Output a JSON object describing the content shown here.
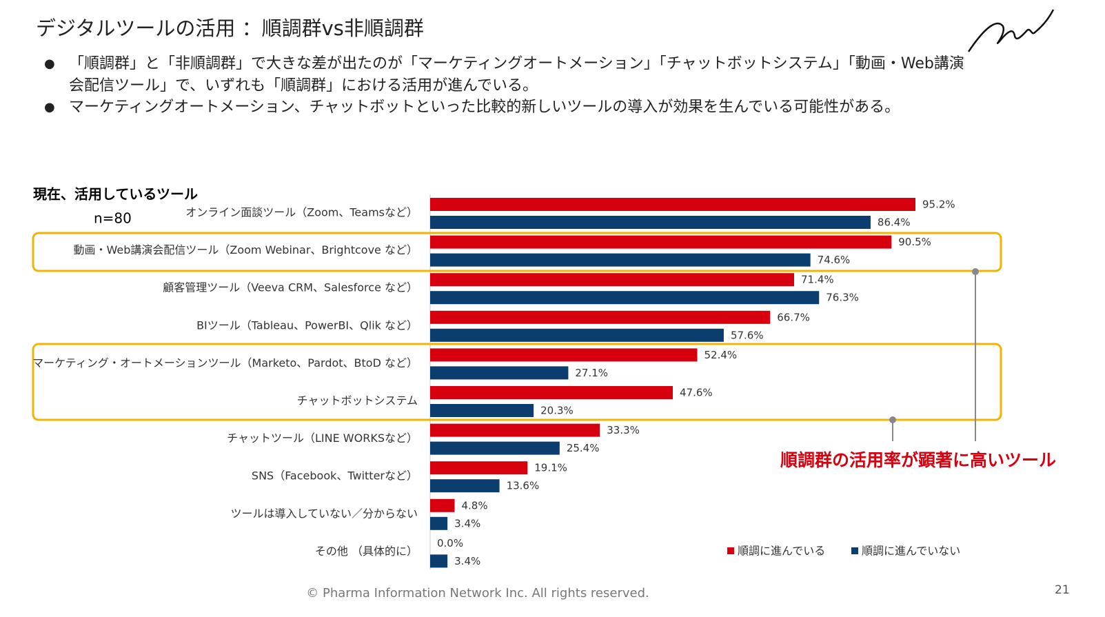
{
  "header": {
    "title": "デジタルツールの活用 ：順調群vs非順調群",
    "bullets": [
      "「順調群」と「非順調群」で大きな差が出たのが「マーケティングオートメーション」「チャットボットシステム」「動画・Web講演会配信ツール」で、いずれも「順調群」における活用が進んでいる。",
      "マーケティングオートメーション、チャットボットといった比較的新しいツールの導入が効果を生んでいる可能性がある。"
    ]
  },
  "chart_data": {
    "type": "bar",
    "orientation": "horizontal",
    "title": "現在、活用しているツール",
    "subtitle": "n=80",
    "categories": [
      "オンライン面談ツール（Zoom、Teamsなど）",
      "動画・Web講演会配信ツール（Zoom Webinar、Brightcove など）",
      "顧客管理ツール（Veeva CRM、Salesforce など）",
      "BIツール（Tableau、PowerBI、Qlik など）",
      "マーケティング・オートメーションツール（Marketo、Pardot、BtoD など）",
      "チャットボットシステム",
      "チャットツール（LINE WORKSなど）",
      "SNS（Facebook、Twitterなど）",
      "ツールは導入していない／分からない",
      "その他 （具体的に）"
    ],
    "series": [
      {
        "name": "順調に進んでいる",
        "color": "#d7000f",
        "values": [
          95.2,
          90.5,
          71.4,
          66.7,
          52.4,
          47.6,
          33.3,
          19.1,
          4.8,
          0.0
        ],
        "value_labels": [
          "95.2%",
          "90.5%",
          "71.4%",
          "66.7%",
          "52.4%",
          "47.6%",
          "33.3%",
          "19.1%",
          "4.8%",
          "0.0%"
        ]
      },
      {
        "name": "順調に進んでいない",
        "color": "#0b3d6e",
        "values": [
          86.4,
          74.6,
          76.3,
          57.6,
          27.1,
          20.3,
          25.4,
          13.6,
          3.4,
          3.4
        ],
        "value_labels": [
          "86.4%",
          "74.6%",
          "76.3%",
          "57.6%",
          "27.1%",
          "20.3%",
          "25.4%",
          "13.6%",
          "3.4%",
          "3.4%"
        ]
      }
    ],
    "annotation": "順調群の活用率が顕著に高いツール"
  },
  "footer": {
    "copyright": "© Pharma Information Network Inc.  All rights reserved.",
    "page": "21"
  }
}
